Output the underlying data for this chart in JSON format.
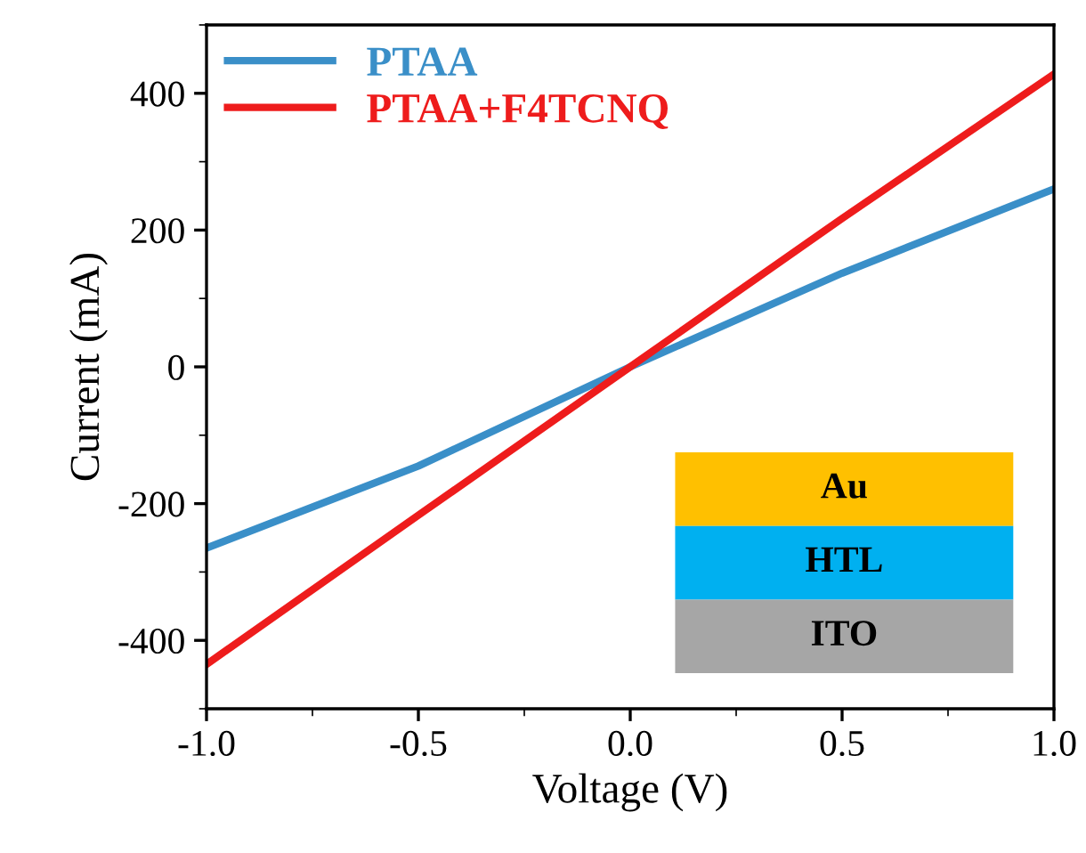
{
  "chart_data": {
    "type": "line",
    "xlabel": "Voltage (V)",
    "ylabel": "Current (mA)",
    "x": [
      -1.0,
      -0.5,
      0.0,
      0.5,
      1.0
    ],
    "series": [
      {
        "name": "PTAA",
        "color": "#3a8fc8",
        "values": [
          -265,
          -145,
          0,
          137,
          260
        ]
      },
      {
        "name": "PTAA+F4TCNQ",
        "color": "#ee1c1c",
        "values": [
          -435,
          -217,
          0,
          217,
          428
        ]
      }
    ],
    "xlim": [
      -1.0,
      1.0
    ],
    "xticks": [
      {
        "value": -1.0,
        "label": "-1.0"
      },
      {
        "value": -0.5,
        "label": "-0.5"
      },
      {
        "value": 0.0,
        "label": "0.0"
      },
      {
        "value": 0.5,
        "label": "0.5"
      },
      {
        "value": 1.0,
        "label": "1.0"
      }
    ],
    "ylim": [
      -500,
      500
    ],
    "yticks": [
      {
        "value": -400,
        "label": "-400"
      },
      {
        "value": -200,
        "label": "-200"
      },
      0,
      200,
      400
    ],
    "legend": "top left",
    "grid": false,
    "marker": "none",
    "line_style": "solid",
    "annotations": [
      "Au",
      "HTL",
      "ITO"
    ]
  }
}
